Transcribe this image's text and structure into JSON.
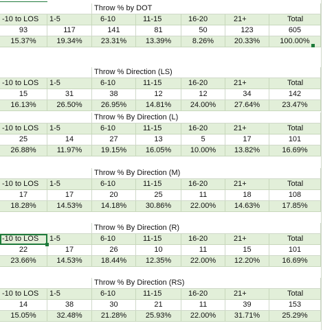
{
  "headers": [
    "-10 to LOS",
    "1-5",
    "6-10",
    "11-15",
    "16-20",
    "21+",
    "Total"
  ],
  "blocks": [
    {
      "title": "Throw % by DOT",
      "counts": [
        "93",
        "117",
        "141",
        "81",
        "50",
        "123",
        "605"
      ],
      "percents": [
        "15.37%",
        "19.34%",
        "23.31%",
        "13.39%",
        "8.26%",
        "20.33%",
        "100.00%"
      ]
    },
    {
      "title": "Throw % Direction (LS)",
      "counts": [
        "15",
        "31",
        "38",
        "12",
        "12",
        "34",
        "142"
      ],
      "percents": [
        "16.13%",
        "26.50%",
        "26.95%",
        "14.81%",
        "24.00%",
        "27.64%",
        "23.47%"
      ]
    },
    {
      "title": "Throw % By Direction (L)",
      "counts": [
        "25",
        "14",
        "27",
        "13",
        "5",
        "17",
        "101"
      ],
      "percents": [
        "26.88%",
        "11.97%",
        "19.15%",
        "16.05%",
        "10.00%",
        "13.82%",
        "16.69%"
      ]
    },
    {
      "title": "Throw % By Direction (M)",
      "counts": [
        "17",
        "17",
        "20",
        "25",
        "11",
        "18",
        "108"
      ],
      "percents": [
        "18.28%",
        "14.53%",
        "14.18%",
        "30.86%",
        "22.00%",
        "14.63%",
        "17.85%"
      ]
    },
    {
      "title": "Throw % By Direction (R)",
      "counts": [
        "22",
        "17",
        "26",
        "10",
        "11",
        "15",
        "101"
      ],
      "percents": [
        "23.66%",
        "14.53%",
        "18.44%",
        "12.35%",
        "22.00%",
        "12.20%",
        "16.69%"
      ]
    },
    {
      "title": "Throw % By Direction (RS)",
      "counts": [
        "14",
        "38",
        "30",
        "21",
        "11",
        "39",
        "153"
      ],
      "percents": [
        "15.05%",
        "32.48%",
        "21.28%",
        "25.93%",
        "22.00%",
        "31.71%",
        "25.29%"
      ]
    }
  ],
  "selected_cell": {
    "block": 4,
    "row": "header",
    "col": 0
  },
  "colors": {
    "band": "#e2efd9",
    "grid": "#cfd8c9",
    "selection": "#1e7a3a"
  }
}
